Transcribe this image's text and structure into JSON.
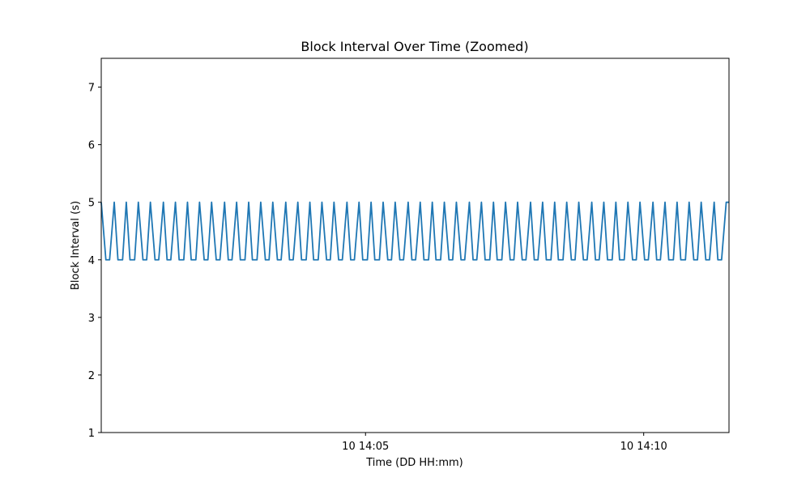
{
  "chart_data": {
    "type": "line",
    "title": "Block Interval Over Time (Zoomed)",
    "xlabel": "Time (DD HH:mm)",
    "ylabel": "Block Interval (s)",
    "ylim": [
      1,
      7.5
    ],
    "yticks": [
      1,
      2,
      3,
      4,
      5,
      6,
      7
    ],
    "x_range": [
      "10 14:00:15",
      "10 14:11:32"
    ],
    "xticks": [
      {
        "time": "10 14:05:00",
        "label": "10 14:05"
      },
      {
        "time": "10 14:10:00",
        "label": "10 14:10"
      }
    ],
    "grid": false,
    "legend": "none",
    "series": [
      {
        "color": "#1f77b4",
        "x": [
          "10 14:00:15",
          "10 14:00:20",
          "10 14:00:24",
          "10 14:00:29",
          "10 14:00:33",
          "10 14:00:38",
          "10 14:00:42",
          "10 14:00:46",
          "10 14:00:51",
          "10 14:00:55",
          "10 14:01:00",
          "10 14:01:04",
          "10 14:01:08",
          "10 14:01:13",
          "10 14:01:17",
          "10 14:01:22",
          "10 14:01:26",
          "10 14:01:30",
          "10 14:01:35",
          "10 14:01:39",
          "10 14:01:44",
          "10 14:01:48",
          "10 14:01:52",
          "10 14:01:57",
          "10 14:02:01",
          "10 14:02:06",
          "10 14:02:10",
          "10 14:02:14",
          "10 14:02:19",
          "10 14:02:23",
          "10 14:02:28",
          "10 14:02:32",
          "10 14:02:36",
          "10 14:02:41",
          "10 14:02:45",
          "10 14:02:50",
          "10 14:02:54",
          "10 14:02:58",
          "10 14:03:03",
          "10 14:03:07",
          "10 14:03:12",
          "10 14:03:16",
          "10 14:03:20",
          "10 14:03:25",
          "10 14:03:29",
          "10 14:03:34",
          "10 14:03:38",
          "10 14:03:42",
          "10 14:03:47",
          "10 14:03:51",
          "10 14:03:56",
          "10 14:04:00",
          "10 14:04:04",
          "10 14:04:09",
          "10 14:04:13",
          "10 14:04:18",
          "10 14:04:22",
          "10 14:04:26",
          "10 14:04:31",
          "10 14:04:35",
          "10 14:04:40",
          "10 14:04:44",
          "10 14:04:48",
          "10 14:04:53",
          "10 14:04:57",
          "10 14:05:02",
          "10 14:05:06",
          "10 14:05:10",
          "10 14:05:15",
          "10 14:05:19",
          "10 14:05:24",
          "10 14:05:28",
          "10 14:05:32",
          "10 14:05:37",
          "10 14:05:41",
          "10 14:05:46",
          "10 14:05:50",
          "10 14:05:54",
          "10 14:05:59",
          "10 14:06:03",
          "10 14:06:08",
          "10 14:06:12",
          "10 14:06:16",
          "10 14:06:21",
          "10 14:06:25",
          "10 14:06:30",
          "10 14:06:34",
          "10 14:06:38",
          "10 14:06:43",
          "10 14:06:47",
          "10 14:06:52",
          "10 14:06:56",
          "10 14:07:00",
          "10 14:07:05",
          "10 14:07:09",
          "10 14:07:14",
          "10 14:07:18",
          "10 14:07:22",
          "10 14:07:27",
          "10 14:07:31",
          "10 14:07:36",
          "10 14:07:40",
          "10 14:07:44",
          "10 14:07:49",
          "10 14:07:53",
          "10 14:07:58",
          "10 14:08:02",
          "10 14:08:06",
          "10 14:08:11",
          "10 14:08:15",
          "10 14:08:20",
          "10 14:08:24",
          "10 14:08:28",
          "10 14:08:33",
          "10 14:08:37",
          "10 14:08:42",
          "10 14:08:46",
          "10 14:08:50",
          "10 14:08:55",
          "10 14:08:59",
          "10 14:09:04",
          "10 14:09:08",
          "10 14:09:12",
          "10 14:09:17",
          "10 14:09:21",
          "10 14:09:26",
          "10 14:09:30",
          "10 14:09:34",
          "10 14:09:39",
          "10 14:09:43",
          "10 14:09:48",
          "10 14:09:52",
          "10 14:09:56",
          "10 14:10:01",
          "10 14:10:05",
          "10 14:10:10",
          "10 14:10:14",
          "10 14:10:18",
          "10 14:10:23",
          "10 14:10:27",
          "10 14:10:32",
          "10 14:10:36",
          "10 14:10:40",
          "10 14:10:45",
          "10 14:10:49",
          "10 14:10:54",
          "10 14:10:58",
          "10 14:11:02",
          "10 14:11:07",
          "10 14:11:11",
          "10 14:11:16",
          "10 14:11:20",
          "10 14:11:24",
          "10 14:11:29",
          "10 14:11:32"
        ],
        "y": [
          5,
          4,
          4,
          5,
          4,
          4,
          5,
          4,
          4,
          5,
          4,
          4,
          5,
          4,
          4,
          5,
          4,
          4,
          5,
          4,
          4,
          5,
          4,
          4,
          5,
          4,
          4,
          5,
          4,
          4,
          5,
          4,
          4,
          5,
          4,
          4,
          5,
          4,
          4,
          5,
          4,
          4,
          5,
          4,
          4,
          5,
          4,
          4,
          5,
          4,
          4,
          5,
          4,
          4,
          5,
          4,
          4,
          5,
          4,
          4,
          5,
          4,
          4,
          5,
          4,
          4,
          5,
          4,
          4,
          5,
          4,
          4,
          5,
          4,
          4,
          5,
          4,
          4,
          5,
          4,
          4,
          5,
          4,
          4,
          5,
          4,
          4,
          5,
          4,
          4,
          5,
          4,
          4,
          5,
          4,
          4,
          5,
          4,
          4,
          5,
          4,
          4,
          5,
          4,
          4,
          5,
          4,
          4,
          5,
          4,
          4,
          5,
          4,
          4,
          5,
          4,
          4,
          5,
          4,
          4,
          5,
          4,
          4,
          5,
          4,
          4,
          5,
          4,
          4,
          5,
          4,
          4,
          5,
          4,
          4,
          5,
          4,
          4,
          5,
          4,
          4,
          5,
          4,
          4,
          5,
          4,
          4,
          5,
          4,
          4,
          5,
          4,
          4,
          5,
          5
        ]
      }
    ]
  }
}
